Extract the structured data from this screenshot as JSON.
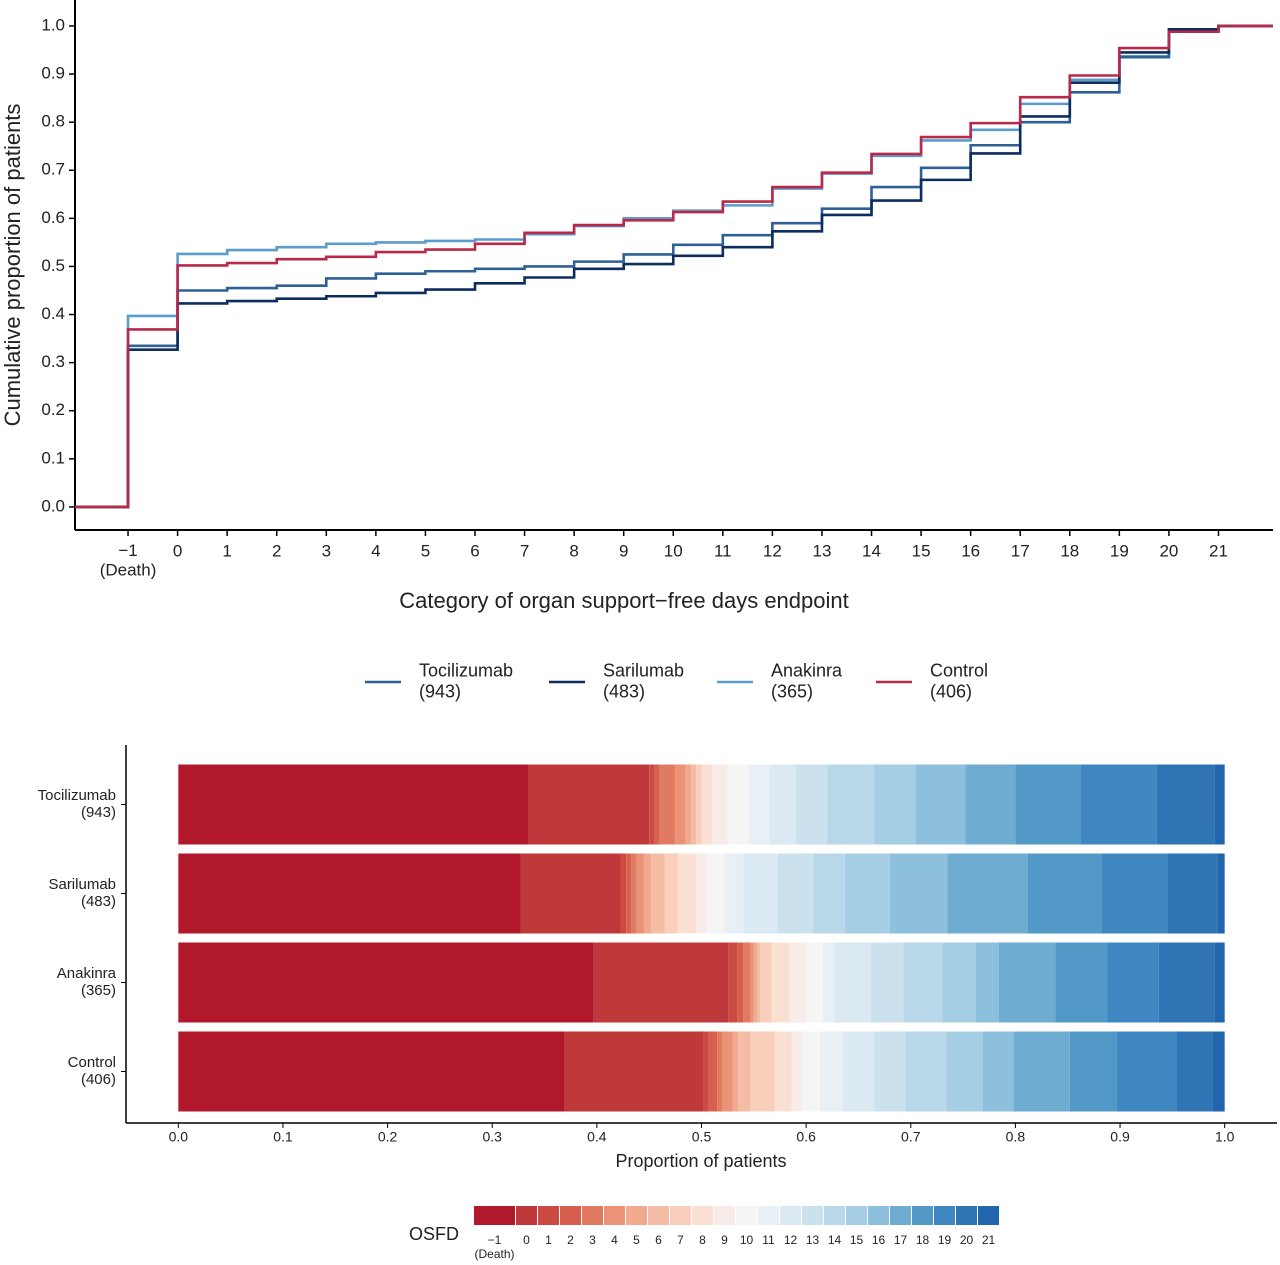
{
  "chart_data": [
    {
      "type": "step-line",
      "xlabel": "Category of organ support−free days endpoint",
      "ylabel": "Cumulative proportion of patients",
      "x": [
        -1,
        0,
        1,
        2,
        3,
        4,
        5,
        6,
        7,
        8,
        9,
        10,
        11,
        12,
        13,
        14,
        15,
        16,
        17,
        18,
        19,
        20,
        21
      ],
      "xlim": [
        -2.07,
        22.1
      ],
      "xticks": [
        {
          "value": -1,
          "label": "−1\n(Death)"
        },
        0,
        1,
        2,
        3,
        4,
        5,
        6,
        7,
        8,
        9,
        10,
        11,
        12,
        13,
        14,
        15,
        16,
        17,
        18,
        19,
        20,
        21
      ],
      "ylim": [
        -0.048,
        1.054
      ],
      "yticks": [
        {
          "value": 0,
          "label": "0.0"
        },
        {
          "value": 0.1,
          "label": "0.1"
        },
        {
          "value": 0.2,
          "label": "0.2"
        },
        {
          "value": 0.3,
          "label": "0.3"
        },
        {
          "value": 0.4,
          "label": "0.4"
        },
        {
          "value": 0.5,
          "label": "0.5"
        },
        {
          "value": 0.6,
          "label": "0.6"
        },
        {
          "value": 0.7,
          "label": "0.7"
        },
        {
          "value": 0.8,
          "label": "0.8"
        },
        {
          "value": 0.9,
          "label": "0.9"
        },
        {
          "value": 1,
          "label": "1.0"
        }
      ],
      "legend": "bottom",
      "series": [
        {
          "name": "Tocilizumab\n(943)",
          "color": "#2e6096",
          "values": [
            0.335,
            0.45,
            0.455,
            0.46,
            0.475,
            0.485,
            0.49,
            0.495,
            0.5,
            0.51,
            0.525,
            0.545,
            0.565,
            0.59,
            0.62,
            0.665,
            0.705,
            0.752,
            0.8,
            0.862,
            0.935,
            0.99,
            1.0
          ]
        },
        {
          "name": "Sarilumab\n(483)",
          "color": "#0d2d5e",
          "values": [
            0.327,
            0.423,
            0.428,
            0.433,
            0.438,
            0.445,
            0.452,
            0.465,
            0.477,
            0.495,
            0.505,
            0.522,
            0.54,
            0.573,
            0.607,
            0.637,
            0.68,
            0.735,
            0.812,
            0.882,
            0.945,
            0.993,
            1.0
          ]
        },
        {
          "name": "Anakinra\n(365)",
          "color": "#5b9ccc",
          "values": [
            0.397,
            0.526,
            0.534,
            0.54,
            0.547,
            0.55,
            0.553,
            0.556,
            0.567,
            0.584,
            0.6,
            0.616,
            0.627,
            0.662,
            0.693,
            0.73,
            0.762,
            0.784,
            0.838,
            0.888,
            0.937,
            0.99,
            1.0
          ]
        },
        {
          "name": "Control\n(406)",
          "color": "#b8294a",
          "values": [
            0.369,
            0.502,
            0.507,
            0.515,
            0.52,
            0.53,
            0.535,
            0.547,
            0.57,
            0.586,
            0.596,
            0.613,
            0.635,
            0.665,
            0.695,
            0.734,
            0.769,
            0.798,
            0.852,
            0.897,
            0.954,
            0.988,
            1.0
          ]
        }
      ]
    },
    {
      "type": "stacked-bar-horizontal",
      "xlabel": "Proportion of patients",
      "legend_title": "OSFD",
      "categories": [
        "Tocilizumab\n(943)",
        "Sarilumab\n(483)",
        "Anakinra\n(365)",
        "Control\n(406)"
      ],
      "xlim": [
        -0.05,
        1.05
      ],
      "xticks": [
        {
          "value": 0,
          "label": "0.0"
        },
        {
          "value": 0.1,
          "label": "0.1"
        },
        {
          "value": 0.2,
          "label": "0.2"
        },
        {
          "value": 0.3,
          "label": "0.3"
        },
        {
          "value": 0.4,
          "label": "0.4"
        },
        {
          "value": 0.5,
          "label": "0.5"
        },
        {
          "value": 0.6,
          "label": "0.6"
        },
        {
          "value": 0.7,
          "label": "0.7"
        },
        {
          "value": 0.8,
          "label": "0.8"
        },
        {
          "value": 0.9,
          "label": "0.9"
        },
        {
          "value": 1,
          "label": "1.0"
        }
      ],
      "series": [
        {
          "name": "−1\n(Death)",
          "color": "#b2182b",
          "values": [
            0.335,
            0.327,
            0.397,
            0.369
          ]
        },
        {
          "name": "0",
          "color": "#c0393a",
          "values": [
            0.115,
            0.096,
            0.129,
            0.133
          ]
        },
        {
          "name": "1",
          "color": "#cb4a42",
          "values": [
            0.005,
            0.005,
            0.008,
            0.005
          ]
        },
        {
          "name": "2",
          "color": "#d6604d",
          "values": [
            0.005,
            0.005,
            0.006,
            0.008
          ]
        },
        {
          "name": "3",
          "color": "#e07b62",
          "values": [
            0.015,
            0.005,
            0.007,
            0.005
          ]
        },
        {
          "name": "4",
          "color": "#ea9377",
          "values": [
            0.01,
            0.007,
            0.003,
            0.01
          ]
        },
        {
          "name": "5",
          "color": "#f1a98f",
          "values": [
            0.005,
            0.007,
            0.003,
            0.005
          ]
        },
        {
          "name": "6",
          "color": "#f5bca5",
          "values": [
            0.005,
            0.013,
            0.003,
            0.012
          ]
        },
        {
          "name": "7",
          "color": "#f9cfbb",
          "values": [
            0.005,
            0.012,
            0.011,
            0.023
          ]
        },
        {
          "name": "8",
          "color": "#fae0d3",
          "values": [
            0.01,
            0.018,
            0.017,
            0.016
          ]
        },
        {
          "name": "9",
          "color": "#f7ece7",
          "values": [
            0.015,
            0.01,
            0.016,
            0.01
          ]
        },
        {
          "name": "10",
          "color": "#f5f5f5",
          "values": [
            0.02,
            0.017,
            0.016,
            0.017
          ]
        },
        {
          "name": "11",
          "color": "#e9f0f5",
          "values": [
            0.02,
            0.018,
            0.011,
            0.022
          ]
        },
        {
          "name": "12",
          "color": "#dbe9f2",
          "values": [
            0.025,
            0.033,
            0.035,
            0.03
          ]
        },
        {
          "name": "13",
          "color": "#cbe2ee",
          "values": [
            0.03,
            0.034,
            0.031,
            0.03
          ]
        },
        {
          "name": "14",
          "color": "#b8d8ea",
          "values": [
            0.045,
            0.03,
            0.037,
            0.039
          ]
        },
        {
          "name": "15",
          "color": "#a5cde3",
          "values": [
            0.04,
            0.043,
            0.032,
            0.035
          ]
        },
        {
          "name": "16",
          "color": "#8dc0dd",
          "values": [
            0.047,
            0.055,
            0.022,
            0.029
          ]
        },
        {
          "name": "17",
          "color": "#6eacd1",
          "values": [
            0.048,
            0.077,
            0.054,
            0.054
          ]
        },
        {
          "name": "18",
          "color": "#5299c8",
          "values": [
            0.062,
            0.07,
            0.05,
            0.045
          ]
        },
        {
          "name": "19",
          "color": "#3f87c0",
          "values": [
            0.073,
            0.063,
            0.049,
            0.057
          ]
        },
        {
          "name": "20",
          "color": "#2f75b4",
          "values": [
            0.055,
            0.048,
            0.053,
            0.034
          ]
        },
        {
          "name": "21",
          "color": "#2166ac",
          "values": [
            0.01,
            0.007,
            0.01,
            0.012
          ]
        }
      ]
    }
  ]
}
